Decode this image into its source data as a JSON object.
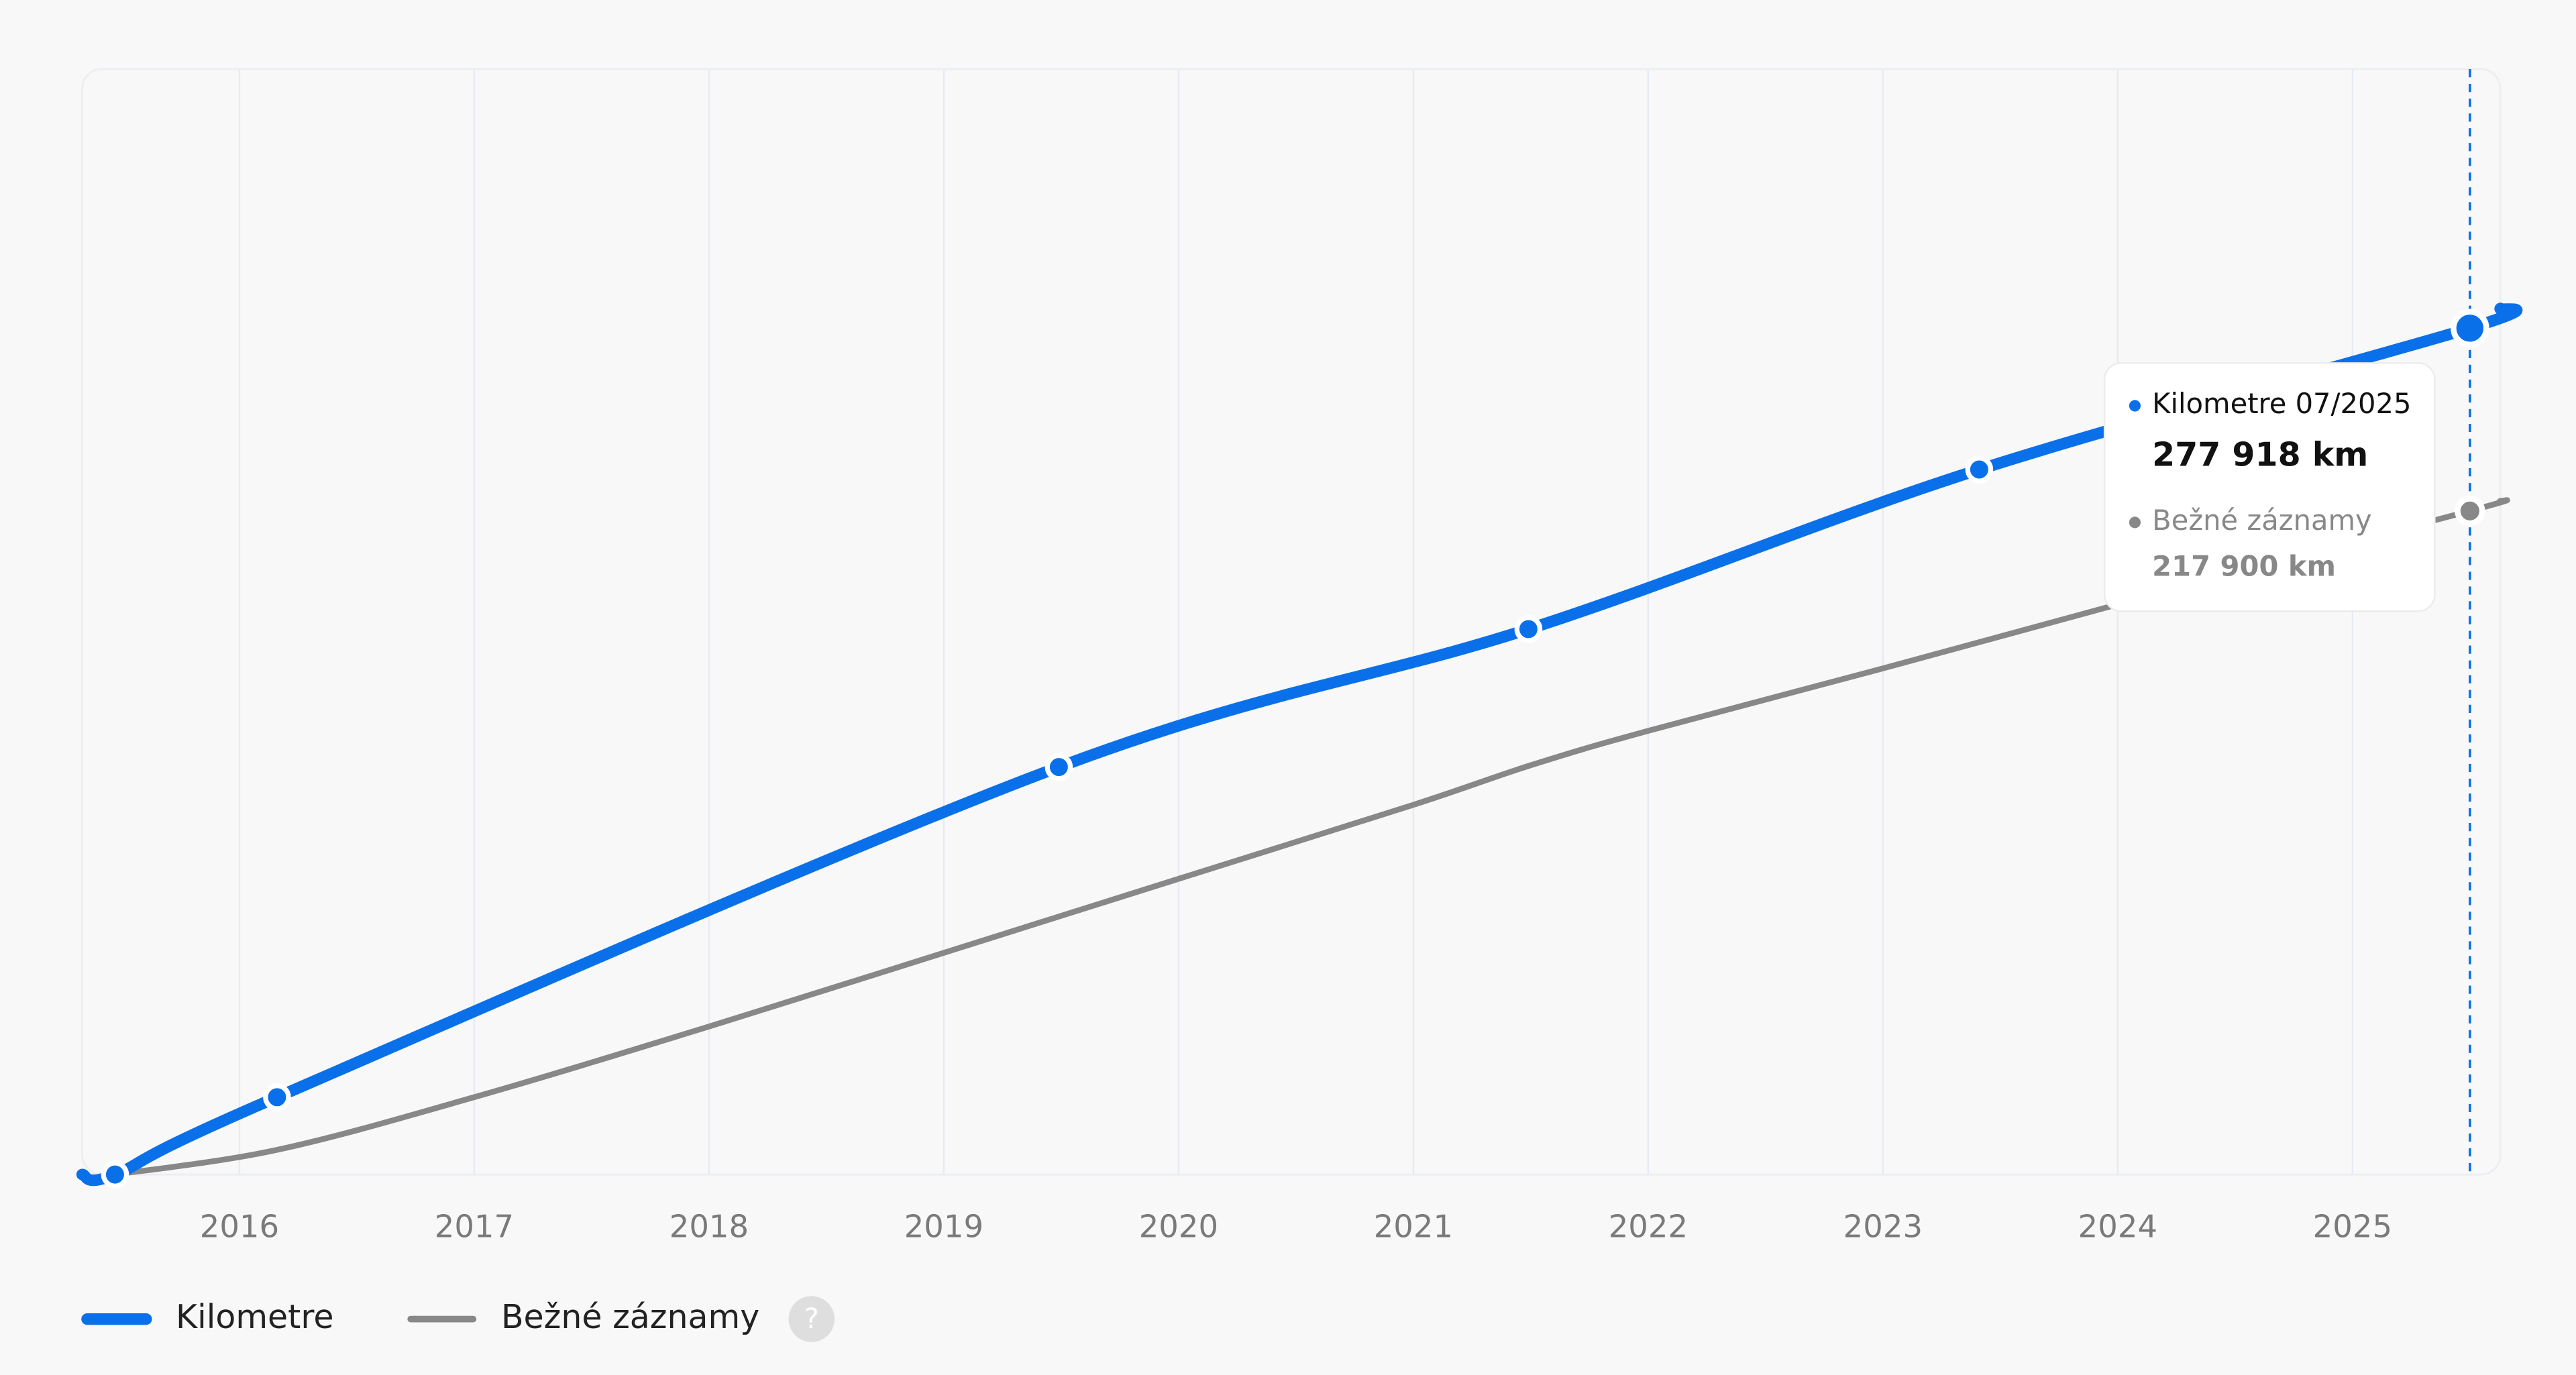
{
  "chart_data": {
    "type": "line",
    "xlim": [
      2015.33,
      2025.63
    ],
    "xticks": [
      2016,
      2017,
      2018,
      2019,
      2020,
      2021,
      2022,
      2023,
      2024,
      2025
    ],
    "ylim": [
      0,
      363000
    ],
    "grid": true,
    "highlight_x": 2025.5,
    "series": [
      {
        "name": "Kilometre",
        "color": "#0a70ea",
        "width": 7,
        "markers": true,
        "highlight_index": 6,
        "x": [
          2015.33,
          2015.47,
          2016.16,
          2019.49,
          2021.49,
          2023.41,
          2025.5,
          2025.63
        ],
        "values": [
          0,
          0,
          25400,
          133800,
          179100,
          231500,
          277918,
          284400
        ]
      },
      {
        "name": "Bežné záznamy",
        "color": "#888888",
        "width": 3.5,
        "markers": false,
        "highlight_index": 11,
        "x": [
          2015.47,
          2016.16,
          2017,
          2018,
          2019,
          2020,
          2021,
          2021.5,
          2022,
          2023,
          2024,
          2025.5,
          2025.63
        ],
        "values": [
          0,
          8100,
          25400,
          48600,
          72800,
          97100,
          121400,
          134400,
          145700,
          166200,
          187200,
          217900,
          221200
        ]
      }
    ],
    "tooltip": {
      "title": "Kilometre 07/2025",
      "value": "277 918 km",
      "second_title": "Bežné záznamy",
      "second_value": "217 900 km"
    },
    "help_icon": "?"
  }
}
